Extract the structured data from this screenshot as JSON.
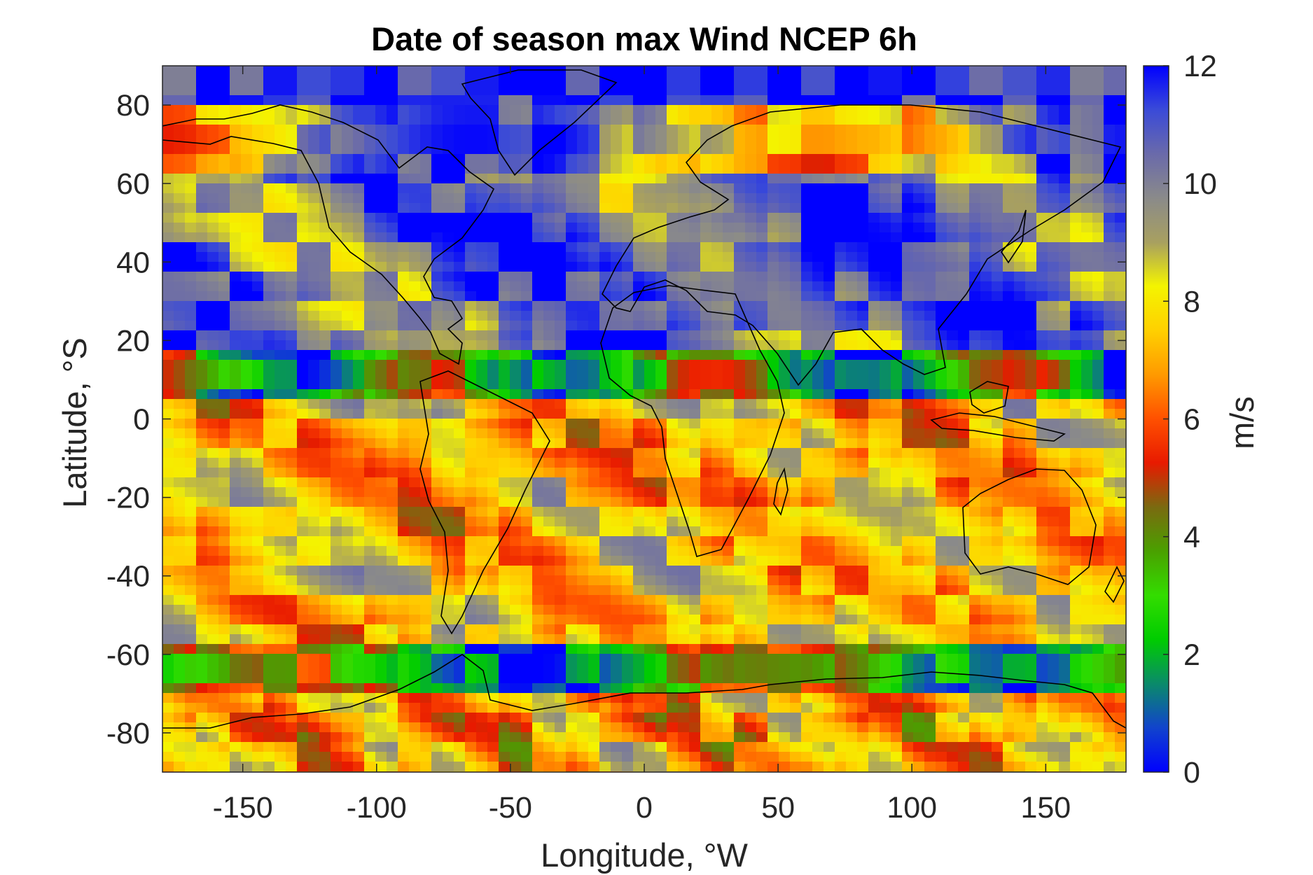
{
  "chart_data": {
    "type": "heatmap",
    "title": "Date of season max Wind NCEP 6h",
    "xlabel": "Longitude, °W",
    "ylabel": "Latitude, °S",
    "xlim": [
      -180,
      180
    ],
    "ylim": [
      -90,
      90
    ],
    "xticks": [
      -150,
      -100,
      -50,
      0,
      50,
      100,
      150
    ],
    "yticks": [
      80,
      60,
      40,
      20,
      0,
      -20,
      -40,
      -60,
      -80
    ],
    "colorbar": {
      "label": "m/s",
      "range": [
        0,
        12
      ],
      "ticks": [
        12,
        10,
        8,
        6,
        4,
        2,
        0
      ],
      "colormap": [
        "#0000ff",
        "#1144cc",
        "#0a8a6a",
        "#00cc00",
        "#33dd00",
        "#4aa000",
        "#7a6a10",
        "#e81a00",
        "#ff5000",
        "#ff9a00",
        "#ffd000",
        "#f4f400",
        "#a8a060",
        "#8a8a8a",
        "#6a6aaa",
        "#3a4ad8",
        "#0000ff"
      ]
    },
    "grid": false,
    "overlay": "coastlines"
  }
}
